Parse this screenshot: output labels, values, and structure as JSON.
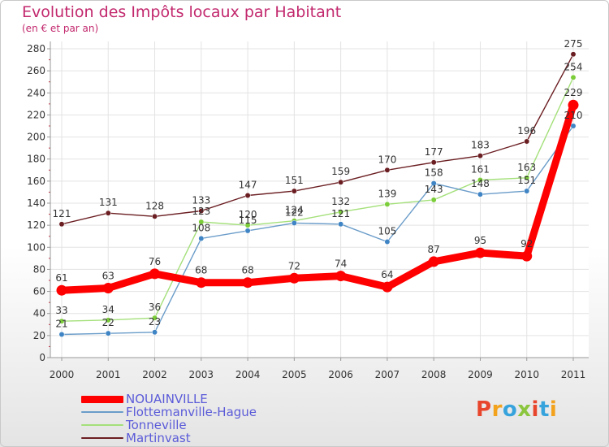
{
  "header": {
    "title": "Evolution des Impôts locaux par Habitant",
    "subtitle": "(en € et par an)"
  },
  "brand": {
    "name": "Proxiti",
    "colors": [
      "#e8452d",
      "#f2a21c",
      "#37a3dc",
      "#8cc63f",
      "#e8452d",
      "#37a3dc",
      "#f2a21c"
    ]
  },
  "chart_data": {
    "type": "line",
    "title": "Evolution des Impôts locaux par Habitant",
    "ylabel": "(en € et par an)",
    "xlabel": "",
    "ylim": [
      0,
      280
    ],
    "ytick_step": 20,
    "grid": true,
    "categories": [
      "2000",
      "2001",
      "2002",
      "2003",
      "2004",
      "2005",
      "2006",
      "2007",
      "2008",
      "2009",
      "2010",
      "2011"
    ],
    "series": [
      {
        "name": "Martinvast",
        "color": "#6b1e22",
        "marker": "#6b1e22",
        "width": "thin",
        "values": [
          121,
          131,
          128,
          133,
          147,
          151,
          159,
          170,
          177,
          183,
          196,
          275
        ],
        "labels": [
          "121",
          "131",
          "128",
          "133",
          "147",
          "151",
          "159",
          "170",
          "177",
          "183",
          "196",
          "275"
        ]
      },
      {
        "name": "Tonneville",
        "color": "#a4e07a",
        "marker": "#7ccd3a",
        "width": "thin",
        "values": [
          33,
          34,
          36,
          123,
          120,
          124,
          132,
          139,
          143,
          161,
          163,
          254
        ],
        "labels": [
          "33",
          "34",
          "36",
          "123",
          "120",
          "124",
          "132",
          "139",
          "143",
          "161",
          "163",
          "254"
        ]
      },
      {
        "name": "Flottemanville-Hague",
        "color": "#6a9cc9",
        "marker": "#3f84c4",
        "width": "thin",
        "values": [
          21,
          22,
          23,
          108,
          115,
          122,
          121,
          105,
          158,
          148,
          151,
          210
        ],
        "labels": [
          "21",
          "22",
          "23",
          "108",
          "115",
          "122",
          "121",
          "105",
          "158",
          "148",
          "151",
          "210"
        ]
      },
      {
        "name": "NOUAINVILLE",
        "color": "#ff0000",
        "marker": "#ff0000",
        "width": "thick",
        "values": [
          61,
          63,
          76,
          68,
          68,
          72,
          74,
          64,
          87,
          95,
          92,
          229
        ],
        "labels": [
          "61",
          "63",
          "76",
          "68",
          "68",
          "72",
          "74",
          "64",
          "87",
          "95",
          "92",
          "229"
        ]
      }
    ],
    "legend": {
      "position": "bottom-left",
      "order": [
        "NOUAINVILLE",
        "Flottemanville-Hague",
        "Tonneville",
        "Martinvast"
      ]
    }
  }
}
